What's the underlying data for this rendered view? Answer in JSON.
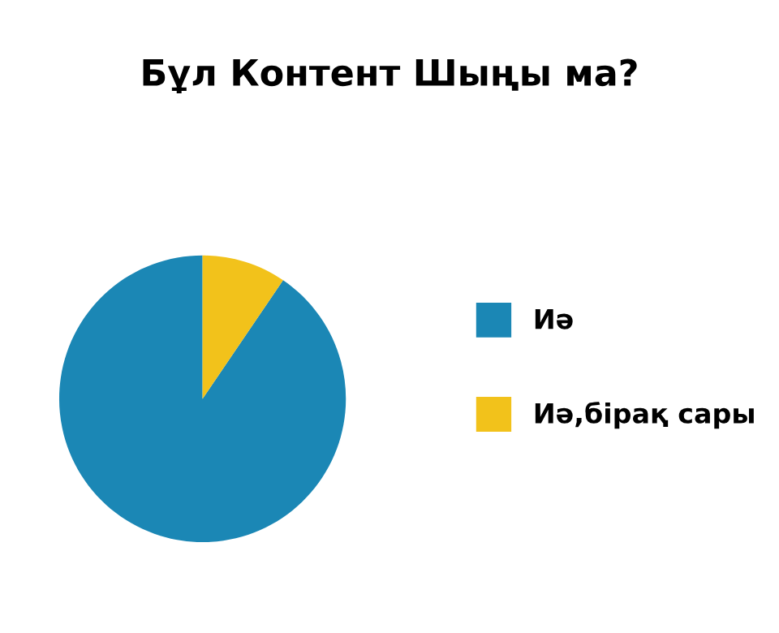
{
  "chart_data": {
    "type": "pie",
    "title": "Бұл Контент Шыңы ма?",
    "categories": [
      "Иә",
      "Иә,бірақ сары"
    ],
    "values": [
      90.5,
      9.5
    ],
    "colors": [
      "#1b87b5",
      "#f2c21b"
    ],
    "legend": "right"
  }
}
